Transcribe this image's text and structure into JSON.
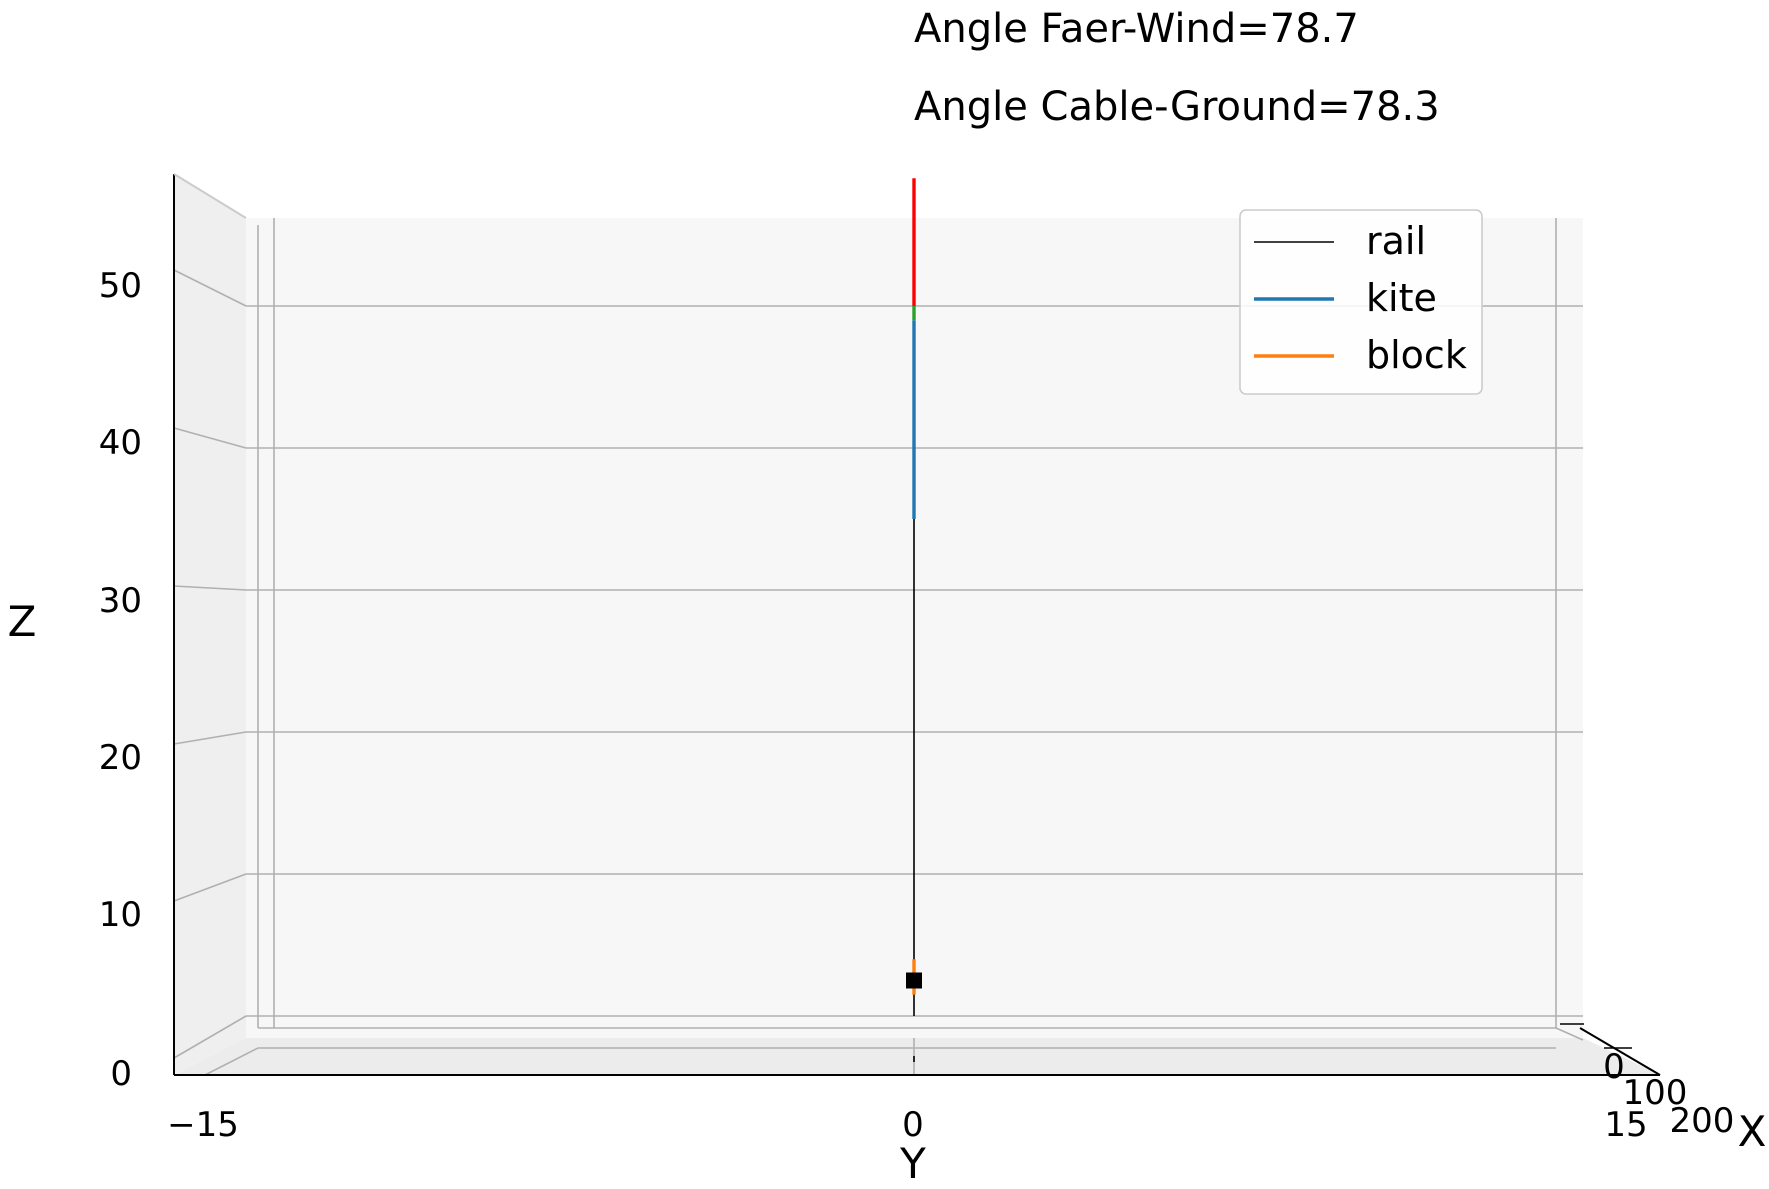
{
  "annotations": {
    "faer_wind": "Angle Faer-Wind=78.7",
    "cable_ground": "Angle Cable-Ground=78.3"
  },
  "chart_data": {
    "type": "line",
    "projection": "3d",
    "view": "front (looking along X)",
    "grid": true,
    "legend_placement": "top-right",
    "xlabel": "X",
    "ylabel": "Y",
    "zlabel": "Z",
    "xlim": [
      0,
      200
    ],
    "ylim": [
      -15,
      15
    ],
    "zlim": [
      0,
      55
    ],
    "x_ticks": [
      "0",
      "100",
      "200"
    ],
    "y_ticks": [
      "−15",
      "0",
      "15"
    ],
    "z_ticks": [
      "0",
      "10",
      "20",
      "30",
      "40",
      "50"
    ],
    "legend": [
      {
        "label": "rail",
        "color": "#000000"
      },
      {
        "label": "kite",
        "color": "#1f77b4"
      },
      {
        "label": "block",
        "color": "#ff7f0e"
      }
    ],
    "segments": [
      {
        "series": "rail",
        "y": 0,
        "z": [
          0,
          35
        ],
        "color": "#000000"
      },
      {
        "series": "kite",
        "y": 0,
        "z": [
          35,
          49
        ],
        "color": "#1f77b4"
      },
      {
        "series": "extra-green",
        "y": 0,
        "z": [
          49,
          50
        ],
        "color": "#2ca02c"
      },
      {
        "series": "extra-red",
        "y": 0,
        "z": [
          50,
          59
        ],
        "color": "#ff0000"
      },
      {
        "series": "block",
        "y": 0,
        "z": [
          1.5,
          4.0
        ],
        "color": "#ff7f0e"
      }
    ],
    "markers": [
      {
        "shape": "square",
        "y": 0,
        "z": 2.5,
        "color": "#000000"
      }
    ]
  }
}
